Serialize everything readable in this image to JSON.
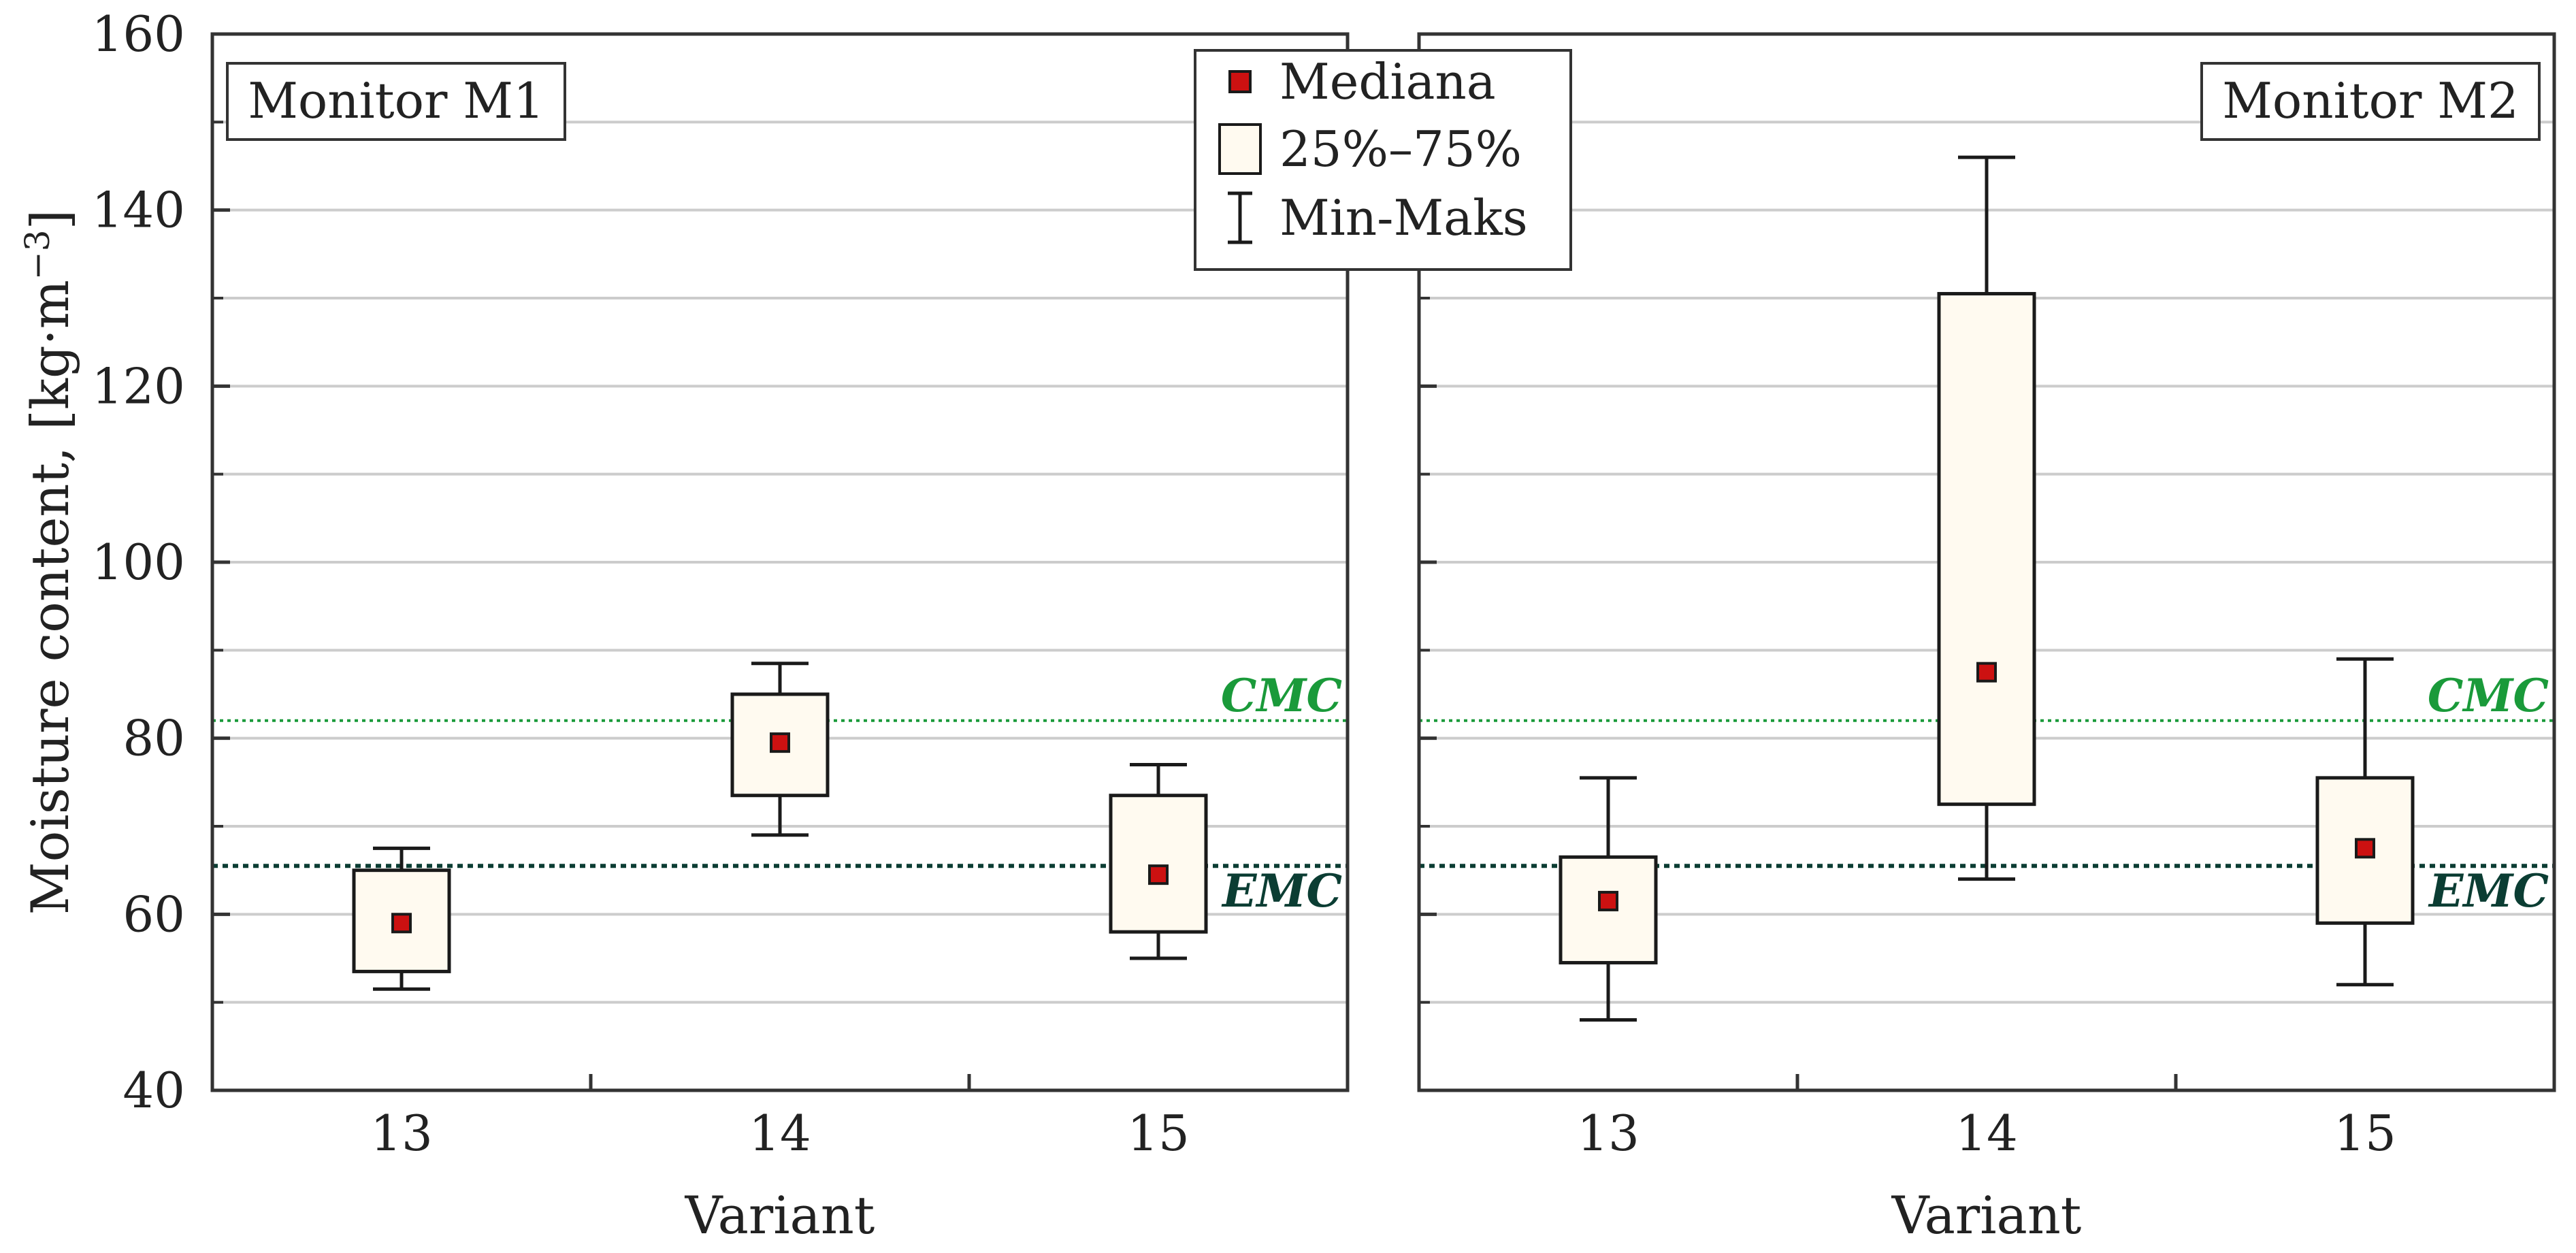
{
  "chart_data": {
    "type": "boxplot",
    "y_axis": {
      "label_main": "Moisture content, [kg·m",
      "label_exp": "−3",
      "label_close": "]",
      "ylim": [
        40,
        160
      ],
      "major_ticks": [
        40,
        60,
        80,
        100,
        120,
        140,
        160
      ],
      "minor_ticks": [
        50,
        70,
        90,
        110,
        130,
        150
      ]
    },
    "x_axis": {
      "label": "Variant",
      "categories": [
        "13",
        "14",
        "15"
      ]
    },
    "reference_lines": {
      "cmc": {
        "label": "CMC",
        "value": 82,
        "color": "#1a9a3a"
      },
      "emc": {
        "label": "EMC",
        "value": 65.5,
        "color": "#0b3d33"
      }
    },
    "legend": {
      "position": "top-center",
      "items": [
        {
          "key": "median",
          "label": "Mediana"
        },
        {
          "key": "iqr",
          "label": "25%–75%"
        },
        {
          "key": "range",
          "label": "Min-Maks"
        }
      ]
    },
    "colors": {
      "median_fill": "#cc1111",
      "box_fill": "#fffaf0",
      "axis": "#333333",
      "grid": "#cccccc"
    },
    "panels": [
      {
        "title": "Monitor M1",
        "series": [
          {
            "category": "13",
            "min": 51.5,
            "q1": 53.5,
            "median": 59,
            "q3": 65,
            "max": 67.5
          },
          {
            "category": "14",
            "min": 69,
            "q1": 73.5,
            "median": 79.5,
            "q3": 85,
            "max": 88.5
          },
          {
            "category": "15",
            "min": 55,
            "q1": 58,
            "median": 64.5,
            "q3": 73.5,
            "max": 77
          }
        ]
      },
      {
        "title": "Monitor M2",
        "series": [
          {
            "category": "13",
            "min": 48,
            "q1": 54.5,
            "median": 61.5,
            "q3": 66.5,
            "max": 75.5
          },
          {
            "category": "14",
            "min": 64,
            "q1": 72.5,
            "median": 87.5,
            "q3": 130.5,
            "max": 146
          },
          {
            "category": "15",
            "min": 52,
            "q1": 59,
            "median": 67.5,
            "q3": 75.5,
            "max": 89
          }
        ]
      }
    ]
  }
}
